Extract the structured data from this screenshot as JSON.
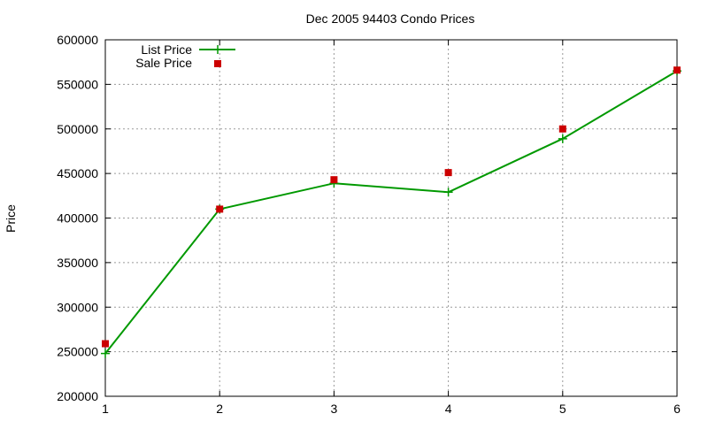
{
  "chart_data": {
    "type": "line",
    "title": "Dec 2005 94403 Condo Prices",
    "xlabel": "",
    "ylabel": "Price",
    "x": [
      1,
      2,
      3,
      4,
      5,
      6
    ],
    "xlim": [
      1,
      6
    ],
    "ylim": [
      200000,
      600000
    ],
    "xticks": [
      1,
      2,
      3,
      4,
      5,
      6
    ],
    "yticks": [
      200000,
      250000,
      300000,
      350000,
      400000,
      450000,
      500000,
      550000,
      600000
    ],
    "grid": true,
    "legend_position": "top-left",
    "series": [
      {
        "name": "List Price",
        "style": "line-with-points",
        "color": "#009900",
        "values": [
          248000,
          410000,
          439000,
          429000,
          489000,
          565000
        ]
      },
      {
        "name": "Sale Price",
        "style": "points",
        "color": "#cc0000",
        "values": [
          259000,
          410000,
          443000,
          451000,
          500000,
          566000
        ]
      }
    ]
  }
}
